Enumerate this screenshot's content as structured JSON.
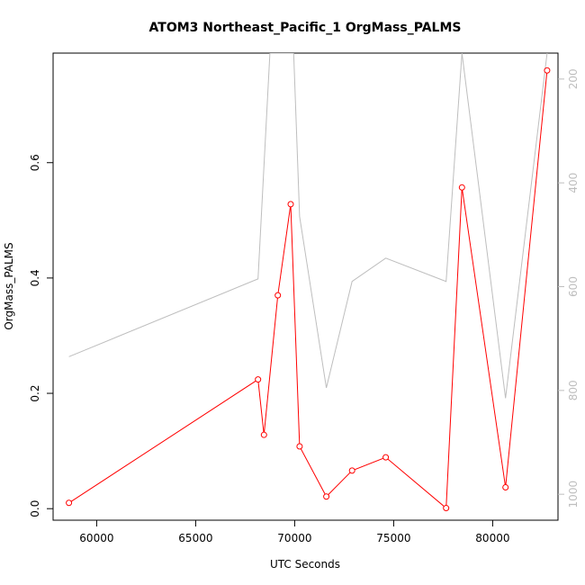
{
  "chart_data": {
    "type": "line",
    "title": "ATOM3 Northeast_Pacific_1 OrgMass_PALMS",
    "xlabel": "UTC Seconds",
    "ylabel": "OrgMass_PALMS",
    "xlim": [
      57800,
      83300
    ],
    "ylim": [
      -0.02,
      0.79
    ],
    "y2lim": [
      1050,
      150
    ],
    "y2_reversed": true,
    "x_ticks": [
      60000,
      65000,
      70000,
      75000,
      80000
    ],
    "y_ticks": [
      0.0,
      0.2,
      0.4,
      0.6
    ],
    "y2_ticks": [
      200,
      400,
      600,
      800,
      1000
    ],
    "grid": false,
    "series": [
      {
        "color": "#ff0000",
        "marker": "open-circle",
        "axis": "left",
        "x": [
          58600,
          68150,
          68450,
          69150,
          69800,
          70250,
          71600,
          72900,
          74600,
          77650,
          78450,
          80650,
          82750
        ],
        "values": [
          0.01,
          0.224,
          0.128,
          0.37,
          0.528,
          0.108,
          0.021,
          0.066,
          0.089,
          0.001,
          0.557,
          0.037,
          0.76
        ]
      },
      {
        "color": "#bebebe",
        "marker": "none",
        "axis": "right",
        "x": [
          58600,
          68150,
          68750,
          69950,
          70250,
          71600,
          72900,
          74600,
          77650,
          78450,
          80650,
          82750
        ],
        "values": [
          735,
          585,
          150,
          150,
          465,
          795,
          590,
          545,
          590,
          150,
          815,
          150
        ]
      }
    ]
  }
}
